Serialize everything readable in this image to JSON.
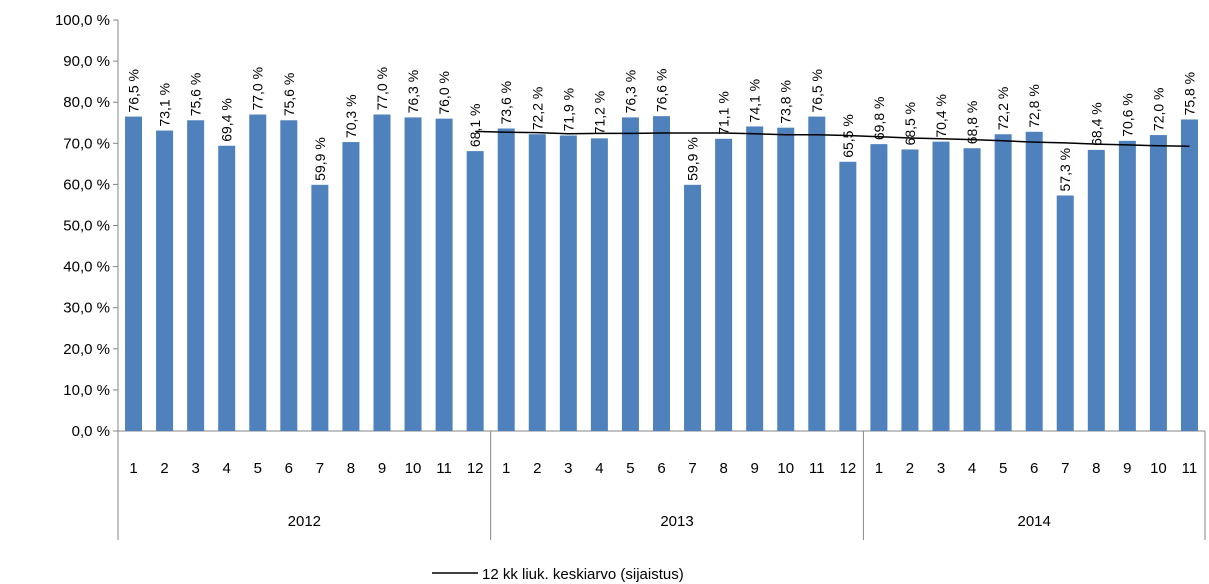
{
  "chart_data": {
    "type": "bar",
    "categories": [
      "1",
      "2",
      "3",
      "4",
      "5",
      "6",
      "7",
      "8",
      "9",
      "10",
      "11",
      "12",
      "1",
      "2",
      "3",
      "4",
      "5",
      "6",
      "7",
      "8",
      "9",
      "10",
      "11",
      "12",
      "1",
      "2",
      "3",
      "4",
      "5",
      "6",
      "7",
      "8",
      "9",
      "10",
      "11"
    ],
    "year_groups": [
      "2012",
      "2013",
      "2014"
    ],
    "color": "#4f81bd",
    "values": [
      76.5,
      73.1,
      75.6,
      69.4,
      77.0,
      75.6,
      59.9,
      70.3,
      77.0,
      76.3,
      76.0,
      68.1,
      73.6,
      72.2,
      71.9,
      71.2,
      76.3,
      76.6,
      59.9,
      71.1,
      74.1,
      73.8,
      76.5,
      65.5,
      69.8,
      68.5,
      70.4,
      68.8,
      72.2,
      72.8,
      57.3,
      68.4,
      70.6,
      72.0,
      75.8
    ],
    "value_labels": [
      "76,5 %",
      "73,1 %",
      "75,6 %",
      "69,4 %",
      "77,0 %",
      "75,6 %",
      "59,9 %",
      "70,3 %",
      "77,0 %",
      "76,3 %",
      "76,0 %",
      "68,1 %",
      "73,6 %",
      "72,2 %",
      "71,9 %",
      "71,2 %",
      "76,3 %",
      "76,6 %",
      "59,9 %",
      "71,1 %",
      "74,1 %",
      "73,8 %",
      "76,5 %",
      "65,5 %",
      "69,8 %",
      "68,5 %",
      "70,4 %",
      "68,8 %",
      "72,2 %",
      "72,8 %",
      "57,3 %",
      "68,4 %",
      "70,6 %",
      "72,0 %",
      "75,8 %"
    ],
    "series": [
      {
        "name": "12 kk liuk. keskiarvo (sijaistus)",
        "color": "#000000",
        "values": [
          null,
          null,
          null,
          null,
          null,
          null,
          null,
          null,
          null,
          null,
          null,
          72.9,
          72.7,
          72.6,
          72.3,
          72.4,
          72.4,
          72.5,
          72.5,
          72.5,
          72.3,
          72.1,
          72.1,
          71.9,
          71.6,
          71.3,
          71.1,
          70.9,
          70.6,
          70.3,
          70.1,
          69.8,
          69.6,
          69.4,
          69.3
        ]
      }
    ],
    "ylim": [
      0,
      100
    ],
    "yticks": [
      {
        "value": 0,
        "label": "0,0 %"
      },
      {
        "value": 10,
        "label": "10,0 %"
      },
      {
        "value": 20,
        "label": "20,0 %"
      },
      {
        "value": 30,
        "label": "30,0 %"
      },
      {
        "value": 40,
        "label": "40,0 %"
      },
      {
        "value": 50,
        "label": "50,0 %"
      },
      {
        "value": 60,
        "label": "60,0 %"
      },
      {
        "value": 70,
        "label": "70,0 %"
      },
      {
        "value": 80,
        "label": "80,0 %"
      },
      {
        "value": 90,
        "label": "90,0 %"
      },
      {
        "value": 100,
        "label": "100,0 %"
      }
    ],
    "legend": "bottom"
  }
}
